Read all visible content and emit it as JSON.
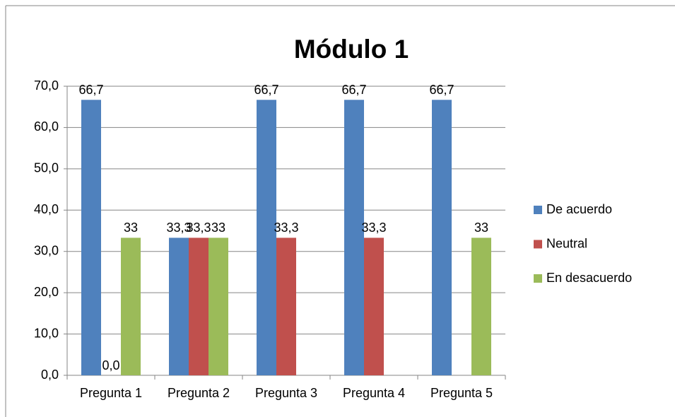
{
  "chart_data": {
    "type": "bar",
    "title": "Módulo 1",
    "categories": [
      "Pregunta 1",
      "Pregunta 2",
      "Pregunta 3",
      "Pregunta 4",
      "Pregunta 5"
    ],
    "series": [
      {
        "name": "De acuerdo",
        "color": "#4f81bd",
        "values": [
          66.7,
          33.3,
          66.7,
          66.7,
          66.7
        ],
        "value_labels": [
          "66,7",
          "33,3",
          "66,7",
          "66,7",
          "66,7"
        ]
      },
      {
        "name": "Neutral",
        "color": "#c0504d",
        "values": [
          0,
          33.3,
          33.3,
          33.3,
          null
        ],
        "value_labels": [
          "0,0",
          "33,3",
          "33,3",
          "33,3",
          null
        ]
      },
      {
        "name": "En desacuerdo",
        "color": "#9bbb59",
        "values": [
          33.3,
          33.3,
          null,
          null,
          33.3
        ],
        "value_labels": [
          "33",
          "33",
          null,
          null,
          "33"
        ]
      }
    ],
    "ylim": [
      0,
      70
    ],
    "yticks": [
      {
        "value": 0,
        "label": "0,0"
      },
      {
        "value": 10,
        "label": "10,0"
      },
      {
        "value": 20,
        "label": "20,0"
      },
      {
        "value": 30,
        "label": "30,0"
      },
      {
        "value": 40,
        "label": "40,0"
      },
      {
        "value": 50,
        "label": "50,0"
      },
      {
        "value": 60,
        "label": "60,0"
      },
      {
        "value": 70,
        "label": "70,0"
      }
    ],
    "grid": true,
    "legend": "right"
  }
}
